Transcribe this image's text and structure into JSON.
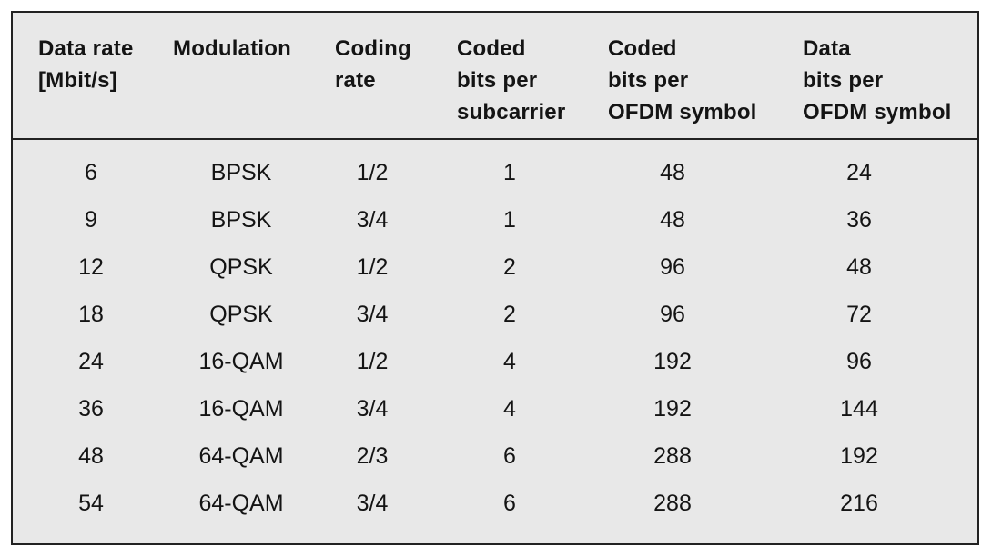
{
  "table": {
    "headers": [
      [
        "Data rate",
        "[Mbit/s]"
      ],
      [
        "Modulation"
      ],
      [
        "Coding",
        "rate"
      ],
      [
        "Coded",
        "bits per",
        "subcarrier"
      ],
      [
        "Coded",
        "bits per",
        "OFDM symbol"
      ],
      [
        "Data",
        "bits per",
        "OFDM symbol"
      ]
    ],
    "rows": [
      [
        "6",
        "BPSK",
        "1/2",
        "1",
        "48",
        "24"
      ],
      [
        "9",
        "BPSK",
        "3/4",
        "1",
        "48",
        "36"
      ],
      [
        "12",
        "QPSK",
        "1/2",
        "2",
        "96",
        "48"
      ],
      [
        "18",
        "QPSK",
        "3/4",
        "2",
        "96",
        "72"
      ],
      [
        "24",
        "16-QAM",
        "1/2",
        "4",
        "192",
        "96"
      ],
      [
        "36",
        "16-QAM",
        "3/4",
        "4",
        "192",
        "144"
      ],
      [
        "48",
        "64-QAM",
        "2/3",
        "6",
        "288",
        "192"
      ],
      [
        "54",
        "64-QAM",
        "3/4",
        "6",
        "288",
        "216"
      ]
    ]
  },
  "colors": {
    "background": "#e8e8e8",
    "border": "#222222",
    "text": "#141414"
  }
}
